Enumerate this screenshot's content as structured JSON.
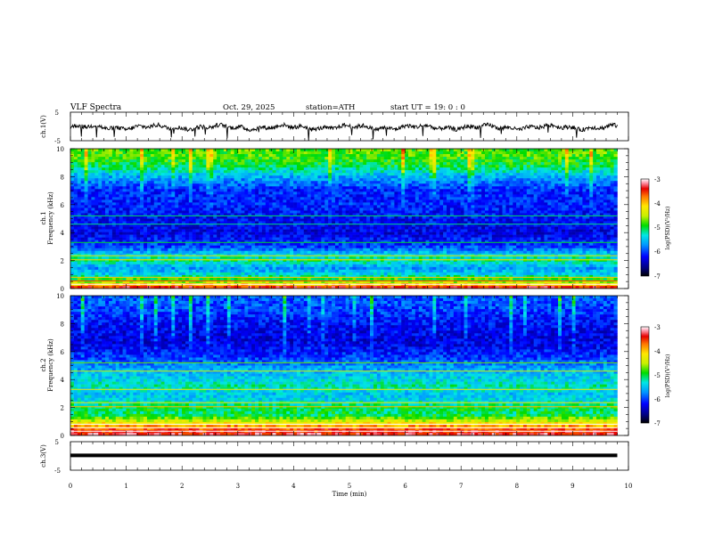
{
  "header": {
    "title": "VLF  Spectra",
    "date": "Oct. 29, 2025",
    "station": "station=ATH",
    "start_ut": "start  UT =   19: 0  : 0"
  },
  "chart_data": {
    "type": "heatmap",
    "title": "VLF  Spectra",
    "xlabel": "Time  (min)",
    "xlim": [
      0,
      10
    ],
    "xticks": [
      "0",
      "1",
      "2",
      "3",
      "4",
      "5",
      "6",
      "7",
      "8",
      "9",
      "10"
    ],
    "panels": [
      {
        "name": "ch.1 waveform",
        "type": "line",
        "ylabel": "ch.1(V)",
        "ylim": [
          -5,
          5
        ],
        "yticks": [
          "5",
          "-5"
        ],
        "trace": {
          "mean": -0.3,
          "amplitude": 1.5,
          "duration_min": 9.8
        }
      },
      {
        "name": "ch.1 spectrogram",
        "type": "heatmap",
        "ylabel_line1": "ch.1",
        "ylabel_line2": "Frequency  (kHz)",
        "ylim": [
          0,
          10
        ],
        "yticks": [
          "0",
          "2",
          "4",
          "6",
          "8",
          "10"
        ],
        "colorbar": {
          "label": "log(PSD)(V²/Hz)",
          "range": [
            -7,
            -3
          ],
          "ticks": [
            "-3",
            "-4",
            "-5",
            "-6",
            "-7"
          ]
        },
        "profile_khz_logpsd": [
          [
            0,
            -3.2
          ],
          [
            0.5,
            -4.6
          ],
          [
            1.0,
            -5.4
          ],
          [
            1.5,
            -5.7
          ],
          [
            2.0,
            -5.1
          ],
          [
            2.5,
            -5.5
          ],
          [
            3.0,
            -6.0
          ],
          [
            4.0,
            -6.3
          ],
          [
            5.0,
            -6.2
          ],
          [
            6.0,
            -6.1
          ],
          [
            7.0,
            -6.1
          ],
          [
            8.0,
            -5.6
          ],
          [
            8.8,
            -5.0
          ],
          [
            9.5,
            -4.8
          ],
          [
            10,
            -4.8
          ]
        ]
      },
      {
        "name": "ch.2 spectrogram",
        "type": "heatmap",
        "ylabel_line1": "ch.2",
        "ylabel_line2": "Frequency  (kHz)",
        "ylim": [
          0,
          10
        ],
        "yticks": [
          "0",
          "2",
          "4",
          "6",
          "8",
          "10"
        ],
        "colorbar": {
          "label": "log(PSD)(V²/Hz)",
          "range": [
            -7,
            -3
          ],
          "ticks": [
            "-3",
            "-4",
            "-5",
            "-6",
            "-7"
          ]
        },
        "profile_khz_logpsd": [
          [
            0,
            -3.3
          ],
          [
            0.5,
            -3.6
          ],
          [
            1.0,
            -4.4
          ],
          [
            1.5,
            -5.1
          ],
          [
            2.0,
            -5.0
          ],
          [
            2.5,
            -5.4
          ],
          [
            3.0,
            -5.5
          ],
          [
            3.5,
            -5.2
          ],
          [
            4.0,
            -5.4
          ],
          [
            5.0,
            -5.7
          ],
          [
            5.5,
            -6.0
          ],
          [
            6.5,
            -6.3
          ],
          [
            7.0,
            -6.3
          ],
          [
            8.0,
            -6.2
          ],
          [
            9.0,
            -6.0
          ],
          [
            10,
            -5.9
          ]
        ]
      },
      {
        "name": "ch.3 waveform",
        "type": "line",
        "ylabel": "ch.3(V)",
        "ylim": [
          -5,
          5
        ],
        "yticks": [
          "5",
          "-5"
        ],
        "trace": {
          "level": 0.2,
          "duration_min": 9.8
        }
      }
    ]
  }
}
